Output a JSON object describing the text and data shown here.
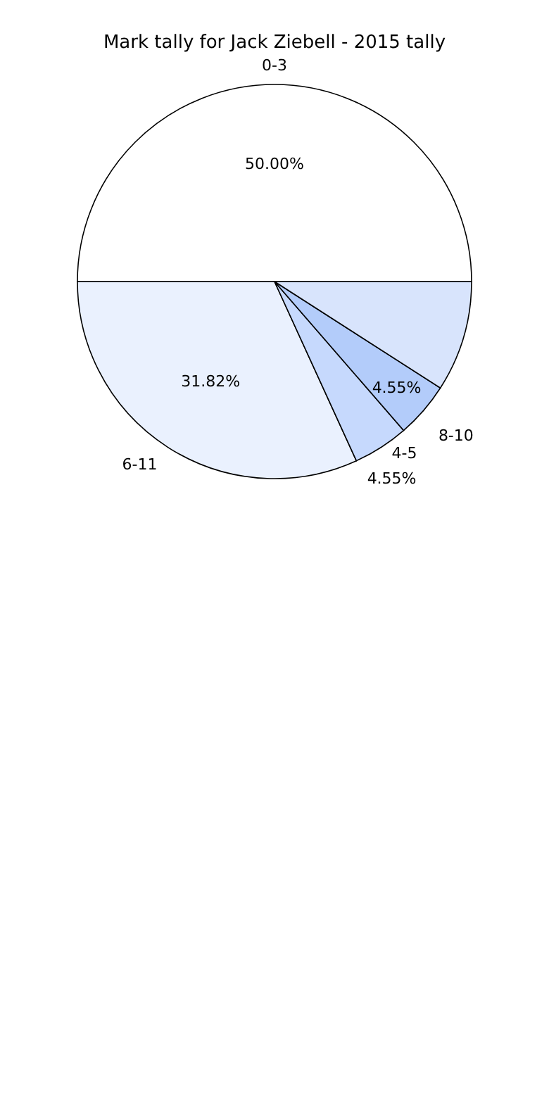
{
  "chart_data": {
    "type": "pie",
    "title": "Mark tally for Jack Ziebell - 2015 tally",
    "categories": [
      "0-3",
      "6-11",
      "4-5",
      "8-10",
      null
    ],
    "values": [
      50,
      31.82,
      4.55,
      4.55,
      9.08
    ],
    "colors": [
      "#ffffff",
      "#eaf1fe",
      "#c6d9fd",
      "#b3ccfa",
      "#d8e4fc"
    ],
    "value_labels": [
      "50.00%",
      "31.82%",
      "4.55%",
      "4.55%",
      null
    ]
  }
}
